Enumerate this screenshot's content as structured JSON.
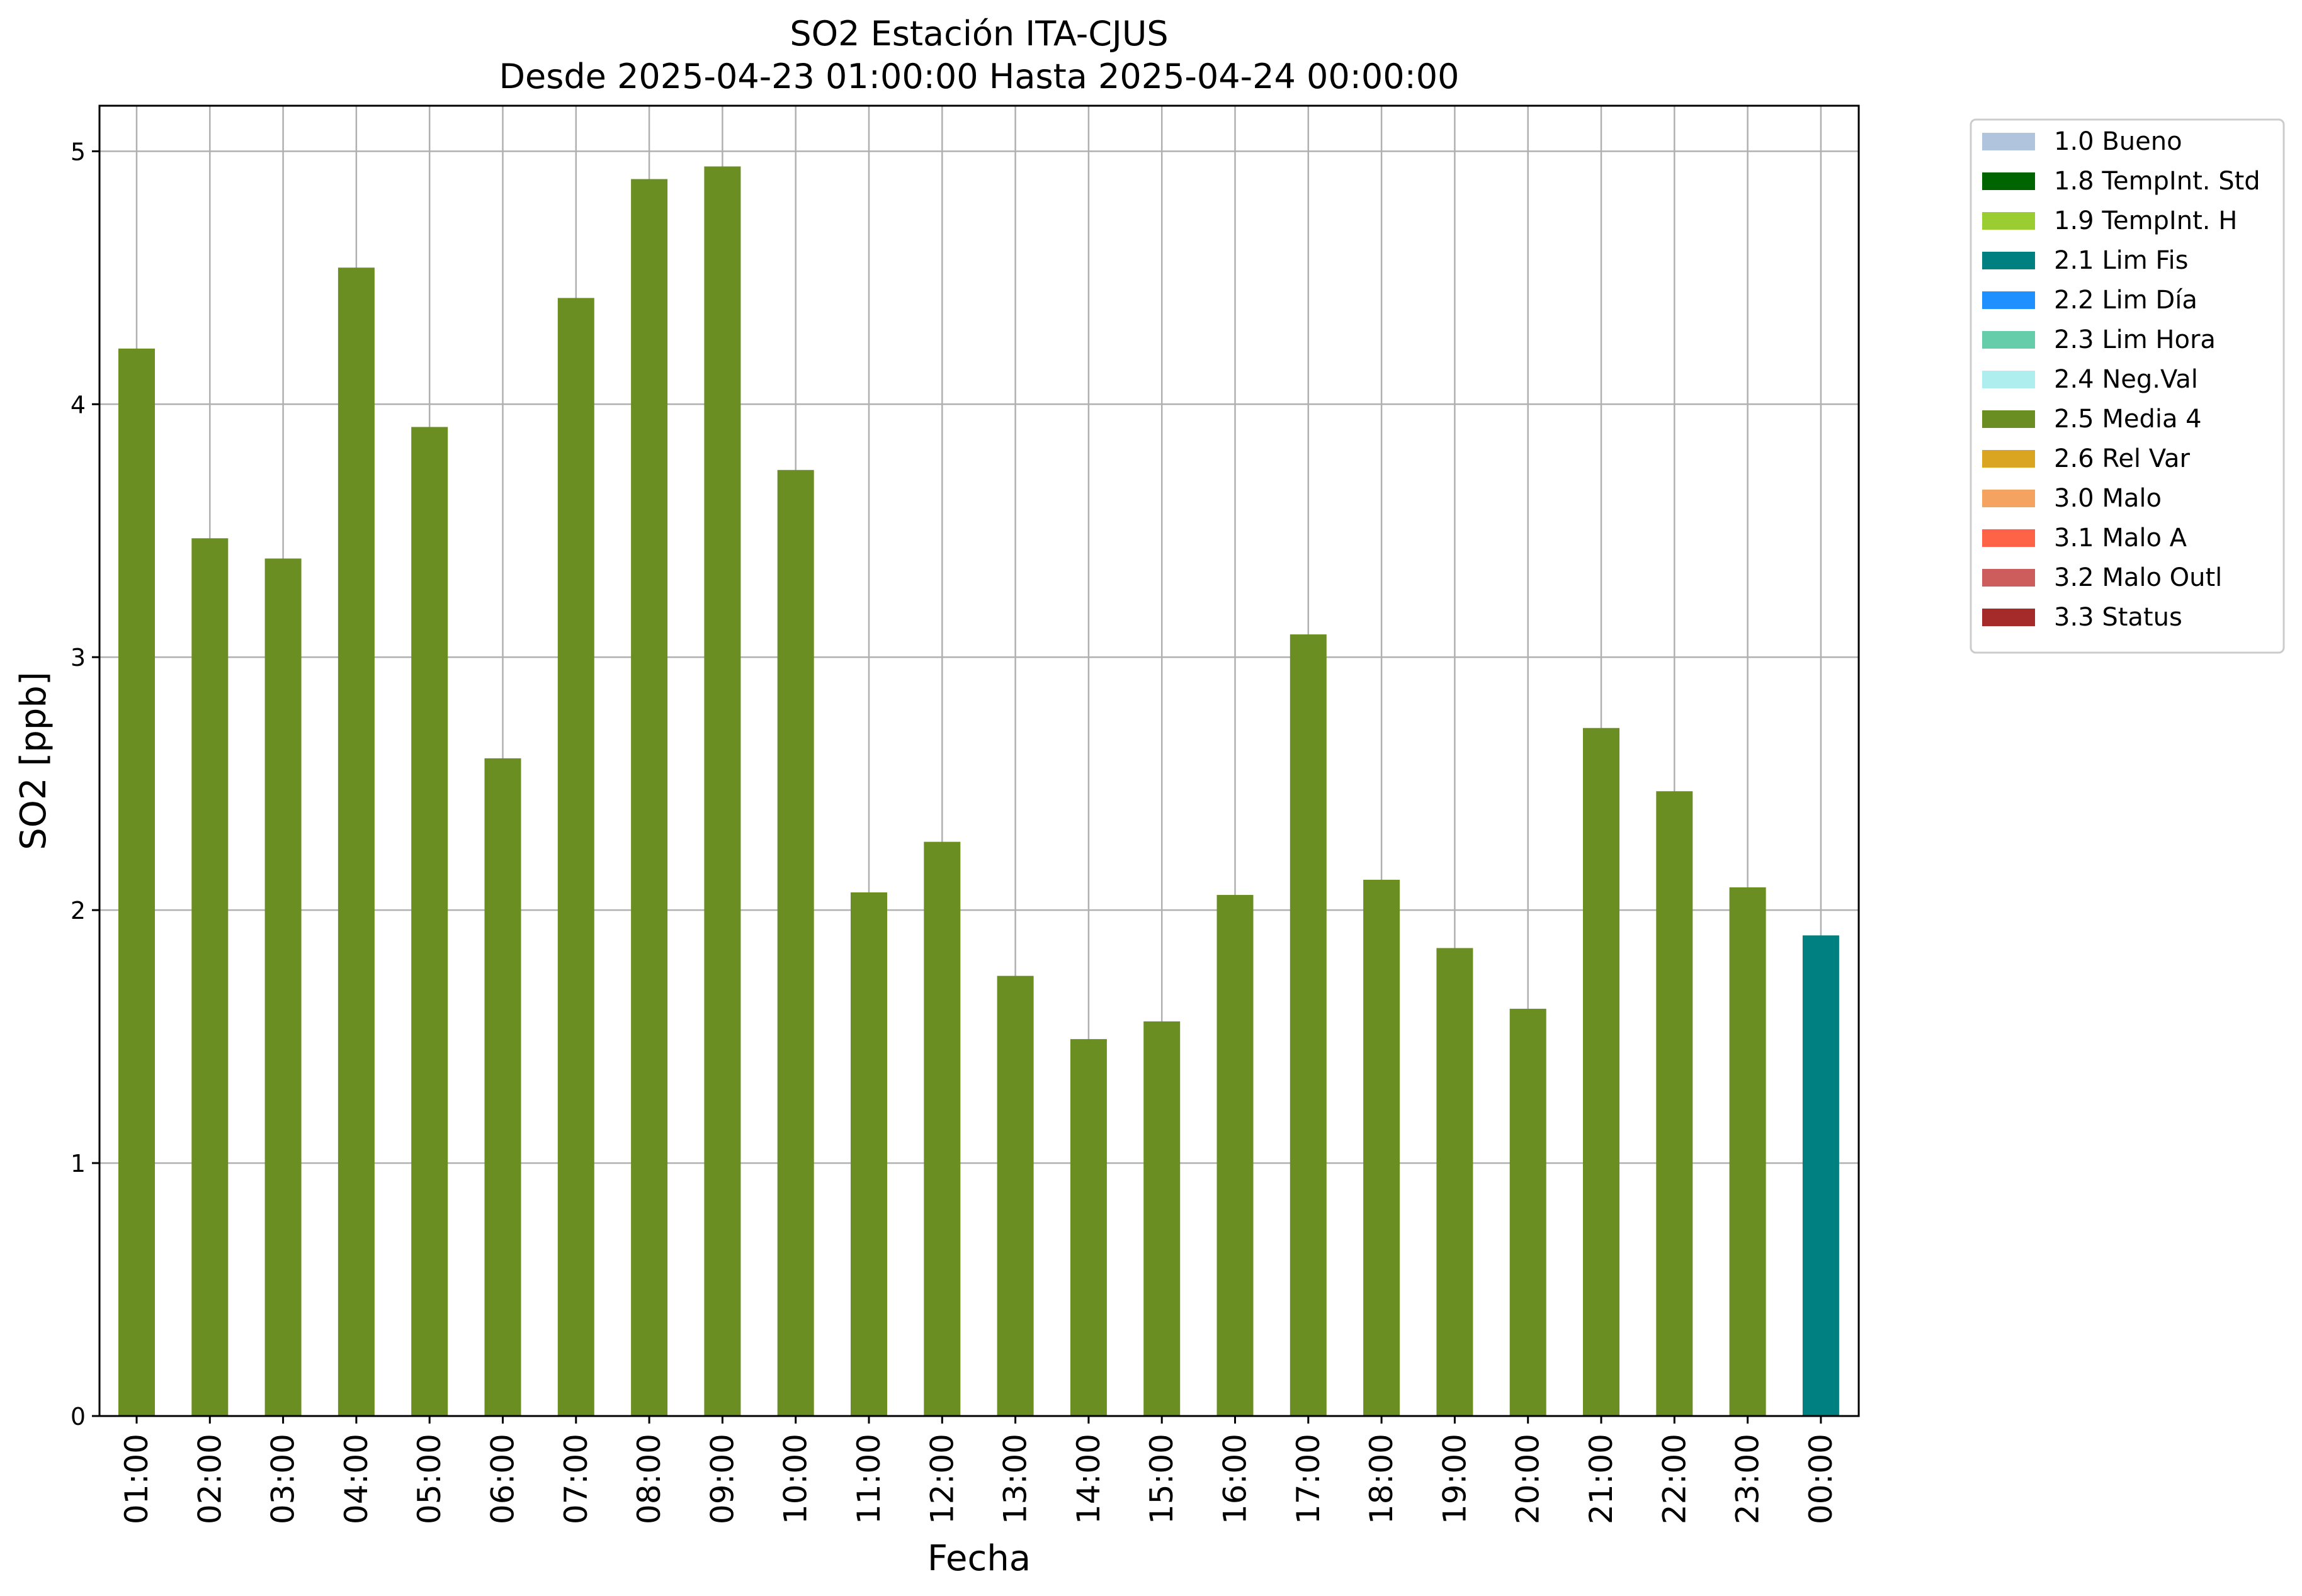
{
  "chart_data": {
    "type": "bar",
    "title": "SO2 Estación ITA-CJUS",
    "subtitle": "Desde 2025-04-23 01:00:00 Hasta 2025-04-24 00:00:00",
    "xlabel": "Fecha",
    "ylabel": "SO2 [ppb]",
    "ylim": [
      0,
      5.18
    ],
    "yticks": [
      0,
      1,
      2,
      3,
      4,
      5
    ],
    "grid": true,
    "legend_position": "outside-top-right",
    "categories": [
      "01:00",
      "02:00",
      "03:00",
      "04:00",
      "05:00",
      "06:00",
      "07:00",
      "08:00",
      "09:00",
      "10:00",
      "11:00",
      "12:00",
      "13:00",
      "14:00",
      "15:00",
      "16:00",
      "17:00",
      "18:00",
      "19:00",
      "20:00",
      "21:00",
      "22:00",
      "23:00",
      "00:00"
    ],
    "values": [
      4.22,
      3.47,
      3.39,
      4.54,
      3.91,
      2.6,
      4.42,
      4.89,
      4.94,
      3.74,
      2.07,
      2.27,
      1.74,
      1.49,
      1.56,
      2.06,
      3.09,
      2.12,
      1.85,
      1.61,
      2.72,
      2.47,
      2.09,
      1.9
    ],
    "bar_flags": [
      "2.5 Media 4",
      "2.5 Media 4",
      "2.5 Media 4",
      "2.5 Media 4",
      "2.5 Media 4",
      "2.5 Media 4",
      "2.5 Media 4",
      "2.5 Media 4",
      "2.5 Media 4",
      "2.5 Media 4",
      "2.5 Media 4",
      "2.5 Media 4",
      "2.5 Media 4",
      "2.5 Media 4",
      "2.5 Media 4",
      "2.5 Media 4",
      "2.5 Media 4",
      "2.5 Media 4",
      "2.5 Media 4",
      "2.5 Media 4",
      "2.5 Media 4",
      "2.5 Media 4",
      "2.5 Media 4",
      "2.1 Lim Fis"
    ],
    "legend": [
      {
        "label": "1.0 Bueno",
        "color": "#b0c4de"
      },
      {
        "label": "1.8 TempInt. Std",
        "color": "#006400"
      },
      {
        "label": "1.9 TempInt. H",
        "color": "#9acd32"
      },
      {
        "label": "2.1 Lim Fis",
        "color": "#008080"
      },
      {
        "label": "2.2 Lim Día",
        "color": "#1e90ff"
      },
      {
        "label": "2.3 Lim Hora",
        "color": "#66cdaa"
      },
      {
        "label": "2.4 Neg.Val",
        "color": "#afeeee"
      },
      {
        "label": "2.5 Media 4",
        "color": "#6b8e23"
      },
      {
        "label": "2.6 Rel Var",
        "color": "#daa520"
      },
      {
        "label": "3.0 Malo",
        "color": "#f4a460"
      },
      {
        "label": "3.1 Malo A",
        "color": "#ff6347"
      },
      {
        "label": "3.2 Malo Outl",
        "color": "#cd5c5c"
      },
      {
        "label": "3.3 Status",
        "color": "#a52a2a"
      }
    ]
  }
}
